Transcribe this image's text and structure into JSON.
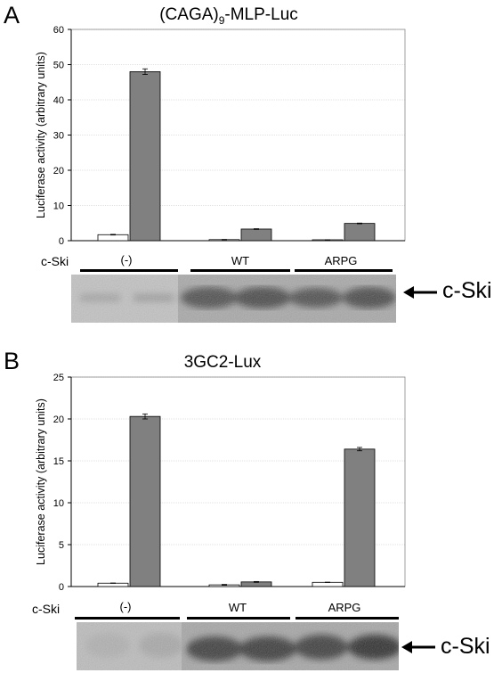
{
  "panels": [
    {
      "letter": "A",
      "title_main": "(CAGA)",
      "title_sub": "9",
      "title_rest": "-MLP-Luc",
      "row_label": "c-Ski",
      "blot_label": "c-Ski",
      "groups": [
        "(-)",
        "WT",
        "ARPG"
      ]
    },
    {
      "letter": "B",
      "title_main": "3GC2-Lux",
      "title_sub": "",
      "title_rest": "",
      "row_label": "c-Ski",
      "blot_label": "c-Ski",
      "groups": [
        "(-)",
        "WT",
        "ARPG"
      ]
    }
  ],
  "chart_data": [
    {
      "type": "bar",
      "title": "(CAGA)9-MLP-Luc",
      "ylabel": "Luciferase activity (arbitrary units)",
      "ylim": [
        0,
        60
      ],
      "yticks": [
        0,
        10,
        20,
        30,
        40,
        50,
        60
      ],
      "categories": [
        "(-)",
        "WT",
        "ARPG"
      ],
      "grid": true,
      "series": [
        {
          "values": [
            1.7,
            0.3,
            0.2
          ],
          "errors": [
            0.1,
            0.05,
            0.05
          ],
          "color": "#ffffff"
        },
        {
          "values": [
            48,
            3.3,
            4.9
          ],
          "errors": [
            0.8,
            0.1,
            0.1
          ],
          "color": "#808080"
        }
      ]
    },
    {
      "type": "bar",
      "title": "3GC2-Lux",
      "ylabel": "Luciferase activity (arbitrary units)",
      "ylim": [
        0,
        25
      ],
      "yticks": [
        0,
        5,
        10,
        15,
        20,
        25
      ],
      "categories": [
        "(-)",
        "WT",
        "ARPG"
      ],
      "grid": true,
      "series": [
        {
          "values": [
            0.4,
            0.2,
            0.5
          ],
          "errors": [
            0.02,
            0.05,
            0.02
          ],
          "color": "#ffffff"
        },
        {
          "values": [
            20.3,
            0.55,
            16.4
          ],
          "errors": [
            0.3,
            0.05,
            0.2
          ],
          "color": "#808080"
        }
      ]
    }
  ]
}
